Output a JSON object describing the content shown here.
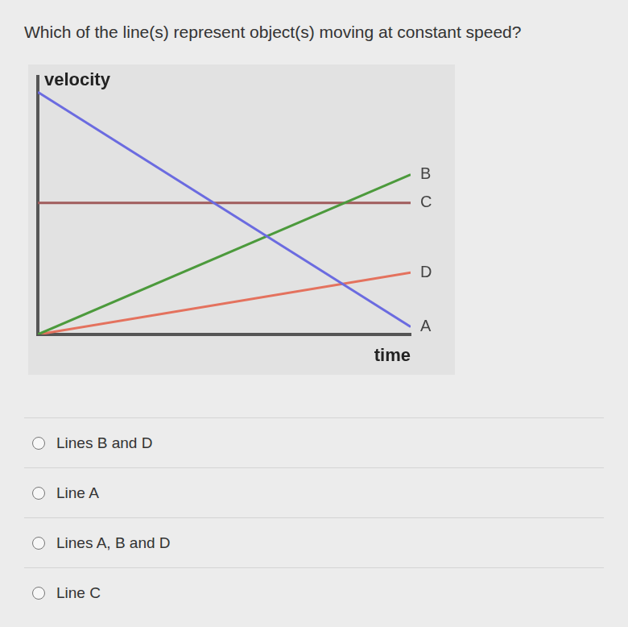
{
  "question": "Which of the line(s) represent object(s) moving at constant speed?",
  "chart_data": {
    "type": "line",
    "x_label": "time",
    "y_label": "velocity",
    "x": [
      0,
      10
    ],
    "series": [
      {
        "name": "A",
        "color": "#6b6be0",
        "values": [
          9.4,
          0.3
        ]
      },
      {
        "name": "B",
        "color": "#4c9a3c",
        "values": [
          0,
          6.2
        ]
      },
      {
        "name": "C",
        "color": "#a05c5c",
        "values": [
          5.1,
          5.1
        ]
      },
      {
        "name": "D",
        "color": "#e4725e",
        "values": [
          0,
          2.4
        ]
      }
    ],
    "xlim": [
      0,
      10
    ],
    "ylim": [
      0,
      10
    ],
    "grid": false,
    "tick_labels": false
  },
  "choices": [
    "Lines B and D",
    "Line A",
    "Lines A, B and D",
    "Line C"
  ]
}
